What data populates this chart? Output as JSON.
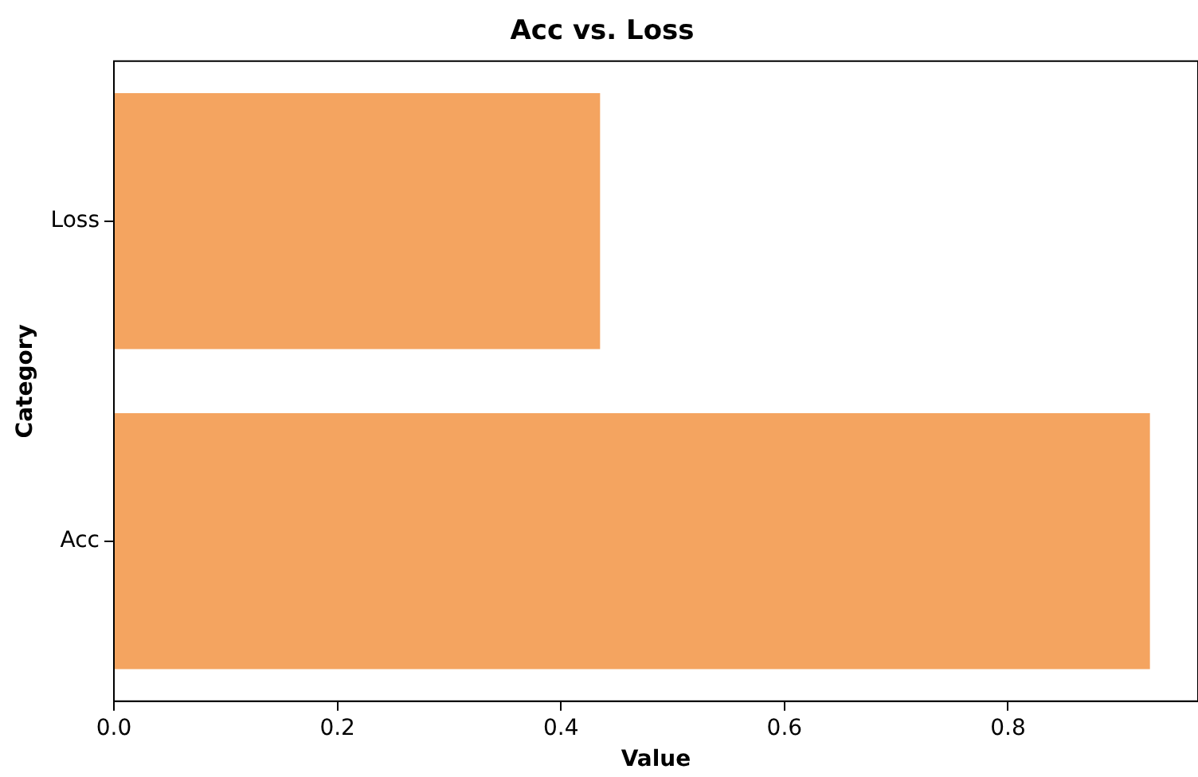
{
  "chart_data": {
    "type": "bar",
    "orientation": "horizontal",
    "title": "Acc vs. Loss",
    "xlabel": "Value",
    "ylabel": "Category",
    "categories": [
      "Loss",
      "Acc"
    ],
    "values": [
      0.435,
      0.927
    ],
    "color": "#f4a460",
    "xlim": [
      0,
      0.97
    ],
    "xticks": [
      {
        "value": 0,
        "label": "0.0"
      },
      {
        "value": 0.2,
        "label": "0.2"
      },
      {
        "value": 0.4,
        "label": "0.4"
      },
      {
        "value": 0.6,
        "label": "0.6"
      },
      {
        "value": 0.8,
        "label": "0.8"
      }
    ],
    "grid": false,
    "legend": false
  }
}
